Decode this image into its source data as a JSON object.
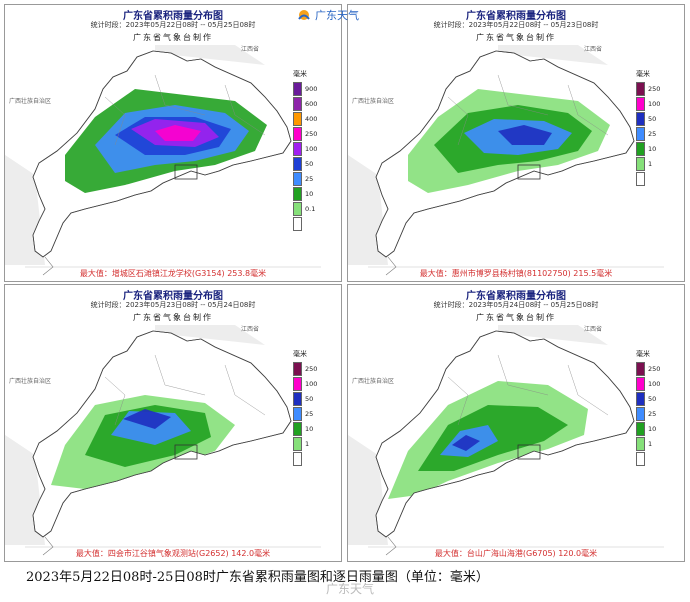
{
  "logo": {
    "text": "广东天气"
  },
  "legends": {
    "unit": "毫米",
    "big": {
      "labels": [
        "900",
        "600",
        "400",
        "250",
        "100",
        "50",
        "25",
        "10",
        "0.1"
      ],
      "colors": [
        "#6a1b9a",
        "#8e24aa",
        "#ff9800",
        "#ff00cc",
        "#a020f0",
        "#1e3fd6",
        "#3f8cff",
        "#21a121",
        "#86e07a",
        "#ffffff"
      ]
    },
    "daily": {
      "labels": [
        "250",
        "100",
        "50",
        "25",
        "10",
        "1"
      ],
      "colors": [
        "#7b1050",
        "#ff00cc",
        "#1e2fc0",
        "#3f8cff",
        "#21a121",
        "#86e07a",
        "#ffffff"
      ]
    }
  },
  "panels": [
    {
      "title": "广东省累积雨量分布图",
      "period": "统计时段：2023年05月22日08时  --  05月25日08时",
      "maker": "广东省气象台制作",
      "max": "最大值：增城区石滩镇江龙学校(G3154) 253.8毫米",
      "legend": "big"
    },
    {
      "title": "广东省累积雨量分布图",
      "period": "统计时段：2023年05月22日08时  --  05月23日08时",
      "maker": "广东省气象台制作",
      "max": "最大值：惠州市博罗县杨村镇(81102750) 215.5毫米",
      "legend": "daily"
    },
    {
      "title": "广东省累积雨量分布图",
      "period": "统计时段：2023年05月23日08时  --  05月24日08时",
      "maker": "广东省气象台制作",
      "max": "最大值：四会市江谷镇气象观测站(G2652) 142.0毫米",
      "legend": "daily"
    },
    {
      "title": "广东省累积雨量分布图",
      "period": "统计时段：2023年05月24日08时  --  05月25日08时",
      "maker": "广东省气象台制作",
      "max": "最大值：台山广海山海港(G6705) 120.0毫米",
      "legend": "daily"
    }
  ],
  "geo": {
    "guangxi": "广西壮族自治区",
    "jiangxi": "江西省"
  },
  "caption": "2023年5月22日08时-25日08时广东省累积雨量图和逐日雨量图（单位：毫米）",
  "watermark": "广东天气"
}
